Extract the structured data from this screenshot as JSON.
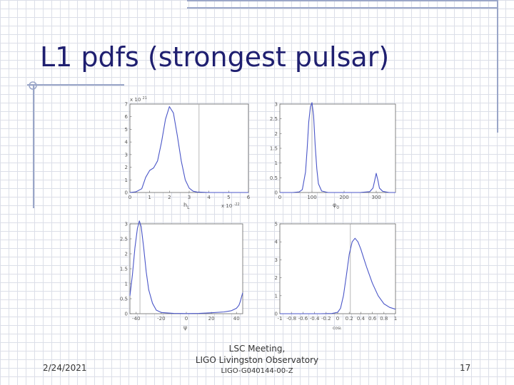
{
  "slide": {
    "title": "L1 pdfs (strongest pulsar)",
    "footer": {
      "date": "2/24/2021",
      "center_line1": "LSC Meeting,",
      "center_line2": "LIGO Livingston Observatory",
      "center_line3": "LIGO-G040144-00-Z",
      "page": "17"
    }
  },
  "colors": {
    "curve": "#4a56c8",
    "marker": "#9a9a9a",
    "axis": "#666666",
    "title": "#1f1f70"
  },
  "chart_data": [
    {
      "type": "line",
      "xlabel": "h",
      "xlabel_sub": "L",
      "xmultiplier": "x 10",
      "xmultiplier_exp": "-22",
      "ymultiplier": "x 10",
      "ymultiplier_exp": "21",
      "xlim": [
        0,
        6
      ],
      "ylim": [
        0,
        7
      ],
      "xticks": [
        0,
        1,
        2,
        3,
        4,
        5,
        6
      ],
      "yticks": [
        0,
        1,
        2,
        3,
        4,
        5,
        6,
        7
      ],
      "marker_x": 3.5,
      "x": [
        0,
        0.3,
        0.6,
        0.8,
        1.0,
        1.2,
        1.4,
        1.6,
        1.8,
        2.0,
        2.2,
        2.4,
        2.6,
        2.8,
        3.0,
        3.2,
        3.4,
        3.6,
        4.0,
        5.0,
        6.0
      ],
      "y": [
        0,
        0.05,
        0.3,
        1.2,
        1.75,
        1.95,
        2.5,
        4.0,
        5.8,
        6.8,
        6.3,
        4.5,
        2.5,
        1.0,
        0.35,
        0.1,
        0.04,
        0.02,
        0,
        0,
        0
      ]
    },
    {
      "type": "line",
      "xlabel": "φ",
      "xlabel_sub": "0",
      "xlim": [
        0,
        360
      ],
      "ylim": [
        0,
        3
      ],
      "xticks": [
        0,
        100,
        200,
        300
      ],
      "yticks": [
        0,
        0.5,
        1,
        1.5,
        2,
        2.5,
        3
      ],
      "marker_x": 100,
      "x": [
        0,
        40,
        60,
        70,
        80,
        85,
        90,
        95,
        100,
        105,
        110,
        115,
        120,
        130,
        150,
        200,
        250,
        280,
        290,
        295,
        300,
        305,
        310,
        320,
        340,
        360
      ],
      "y": [
        0,
        0,
        0.02,
        0.1,
        0.7,
        1.5,
        2.4,
        2.9,
        3.05,
        2.6,
        1.6,
        0.8,
        0.3,
        0.05,
        0,
        0,
        0,
        0.03,
        0.15,
        0.4,
        0.65,
        0.42,
        0.15,
        0.04,
        0,
        0
      ]
    },
    {
      "type": "line",
      "xlabel": "ψ",
      "xlim": [
        -45,
        45
      ],
      "ylim": [
        0,
        3
      ],
      "xticks": [
        -40,
        -20,
        0,
        20,
        40
      ],
      "yticks": [
        0,
        0.5,
        1,
        1.5,
        2,
        2.5,
        3
      ],
      "marker_x": -37,
      "x": [
        -45,
        -43,
        -41,
        -39,
        -37.5,
        -36,
        -34,
        -32,
        -30,
        -27,
        -24,
        -20,
        -10,
        0,
        10,
        20,
        30,
        36,
        40,
        42,
        43,
        44,
        45
      ],
      "y": [
        0.6,
        1.3,
        2.2,
        2.85,
        3.1,
        2.9,
        2.2,
        1.4,
        0.8,
        0.35,
        0.12,
        0.04,
        0.01,
        0.005,
        0.01,
        0.03,
        0.06,
        0.1,
        0.18,
        0.28,
        0.4,
        0.55,
        0.7
      ]
    },
    {
      "type": "line",
      "xlabel": "cosι",
      "xlim": [
        -1,
        1
      ],
      "ylim": [
        0,
        5
      ],
      "xticks": [
        -1,
        -0.8,
        -0.6,
        -0.4,
        -0.2,
        0,
        0.2,
        0.4,
        0.6,
        0.8,
        1
      ],
      "yticks": [
        0,
        1,
        2,
        3,
        4,
        5
      ],
      "marker_x": 0.22,
      "x": [
        -1,
        -0.6,
        -0.3,
        -0.1,
        0.0,
        0.05,
        0.1,
        0.15,
        0.2,
        0.25,
        0.3,
        0.35,
        0.4,
        0.45,
        0.5,
        0.6,
        0.7,
        0.8,
        0.9,
        1.0
      ],
      "y": [
        0,
        0,
        0,
        0.01,
        0.08,
        0.3,
        1.0,
        2.1,
        3.3,
        4.0,
        4.2,
        4.0,
        3.6,
        3.1,
        2.6,
        1.7,
        1.0,
        0.55,
        0.35,
        0.25
      ]
    }
  ]
}
